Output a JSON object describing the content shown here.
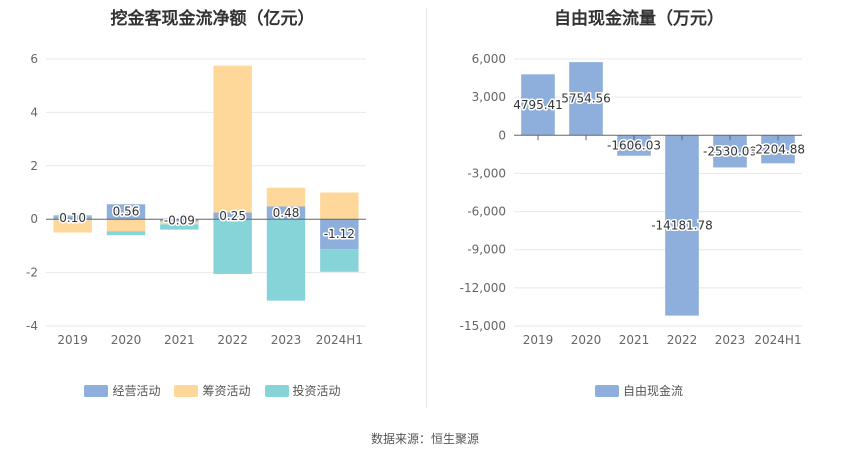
{
  "source_text": "数据来源：恒生聚源",
  "chart_data": [
    {
      "type": "bar",
      "stacked": true,
      "title": "挖金客现金流净额（亿元）",
      "categories": [
        "2019",
        "2020",
        "2021",
        "2022",
        "2023",
        "2024H1"
      ],
      "series": [
        {
          "name": "经营活动",
          "color": "#8eaedb",
          "values": [
            0.1,
            0.56,
            -0.09,
            0.25,
            0.48,
            -1.12
          ]
        },
        {
          "name": "筹资活动",
          "color": "#fdd89a",
          "values": [
            -0.5,
            -0.45,
            -0.1,
            5.5,
            0.7,
            1.0
          ]
        },
        {
          "name": "投资活动",
          "color": "#86d4d8",
          "values": [
            0.05,
            -0.15,
            -0.2,
            -2.05,
            -3.05,
            -0.85
          ]
        }
      ],
      "data_labels": [
        "0.10",
        "0.56",
        "-0.09",
        "0.25",
        "0.48",
        "-1.12"
      ],
      "ylim": [
        -4,
        6
      ],
      "yticks": [
        "6",
        "4",
        "2",
        "0",
        "-2",
        "-4"
      ],
      "grid": true,
      "legend_position": "bottom"
    },
    {
      "type": "bar",
      "title": "自由现金流量（万元）",
      "categories": [
        "2019",
        "2020",
        "2021",
        "2022",
        "2023",
        "2024H1"
      ],
      "series": [
        {
          "name": "自由现金流",
          "color": "#8eaedb",
          "values": [
            4795.41,
            5754.56,
            -1606.03,
            -14181.78,
            -2530.09,
            -2204.88
          ]
        }
      ],
      "data_labels": [
        "4795.41",
        "5754.56",
        "-1606.03",
        "-14181.78",
        "-2530.09",
        "-2204.88"
      ],
      "ylim": [
        -15000,
        6000
      ],
      "yticks": [
        "6,000",
        "3,000",
        "0",
        "-3,000",
        "-6,000",
        "-9,000",
        "-12,000",
        "-15,000"
      ],
      "grid": true,
      "legend_position": "bottom"
    }
  ]
}
